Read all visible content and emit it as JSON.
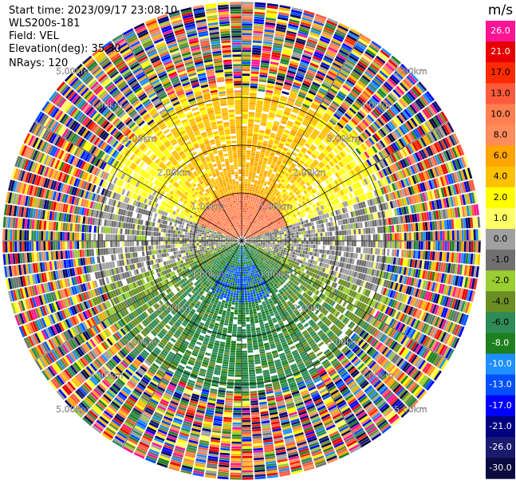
{
  "header": {
    "start_time": "Start time: 2023/09/17 23:08:10",
    "instrument": "WLS200s-181",
    "field": "Field: VEL",
    "elevation": "Elevation(deg): 35.30",
    "nrays": "NRays: 120"
  },
  "chart_data": {
    "type": "heatmap",
    "projection": "polar-ppi",
    "title": "",
    "field": "VEL",
    "elevation_deg": 35.3,
    "nrays": 120,
    "range_rings_km": [
      1.0,
      2.0,
      3.0,
      4.0,
      5.0
    ],
    "range_labels": [
      "1.00km",
      "2.00km",
      "3.00km",
      "4.00km",
      "5.00km"
    ],
    "spokes_deg": [
      0,
      30,
      60,
      90,
      120,
      150,
      180,
      210,
      240,
      270,
      300,
      330
    ],
    "pattern_summary": {
      "north_sector_0_1km": "red/salmon 8-13 m/s",
      "north_sector_1_3km": "orange/yellow 2-6 m/s",
      "east_west_near": "gray -1 to 1 m/s",
      "south_sector": "green -2 to -8 m/s with blue -10 to -13 m/s near center",
      "outer_ring_beyond_3km": "noise, random colors"
    },
    "colorbar": {
      "unit": "m/s",
      "ticks": [
        "26.0",
        "21.0",
        "17.0",
        "13.0",
        "10.0",
        "8.0",
        "6.0",
        "4.0",
        "2.0",
        "1.0",
        "0.0",
        "-1.0",
        "-2.0",
        "-4.0",
        "-6.0",
        "-8.0",
        "-10.0",
        "-13.0",
        "-17.0",
        "-21.0",
        "-26.0",
        "-30.0"
      ],
      "colors": [
        "#ff1493",
        "#e60000",
        "#ff2a00",
        "#ff5a3c",
        "#ff7f50",
        "#ff8c5a",
        "#ffa500",
        "#ffc000",
        "#ffff00",
        "#ffff66",
        "#a0a0a0",
        "#707070",
        "#9acd32",
        "#6b8e23",
        "#2e8b57",
        "#1e7f1e",
        "#1e90ff",
        "#0050ff",
        "#0000ff",
        "#000080",
        "#1a1a6e",
        "#0a0a40"
      ]
    }
  }
}
